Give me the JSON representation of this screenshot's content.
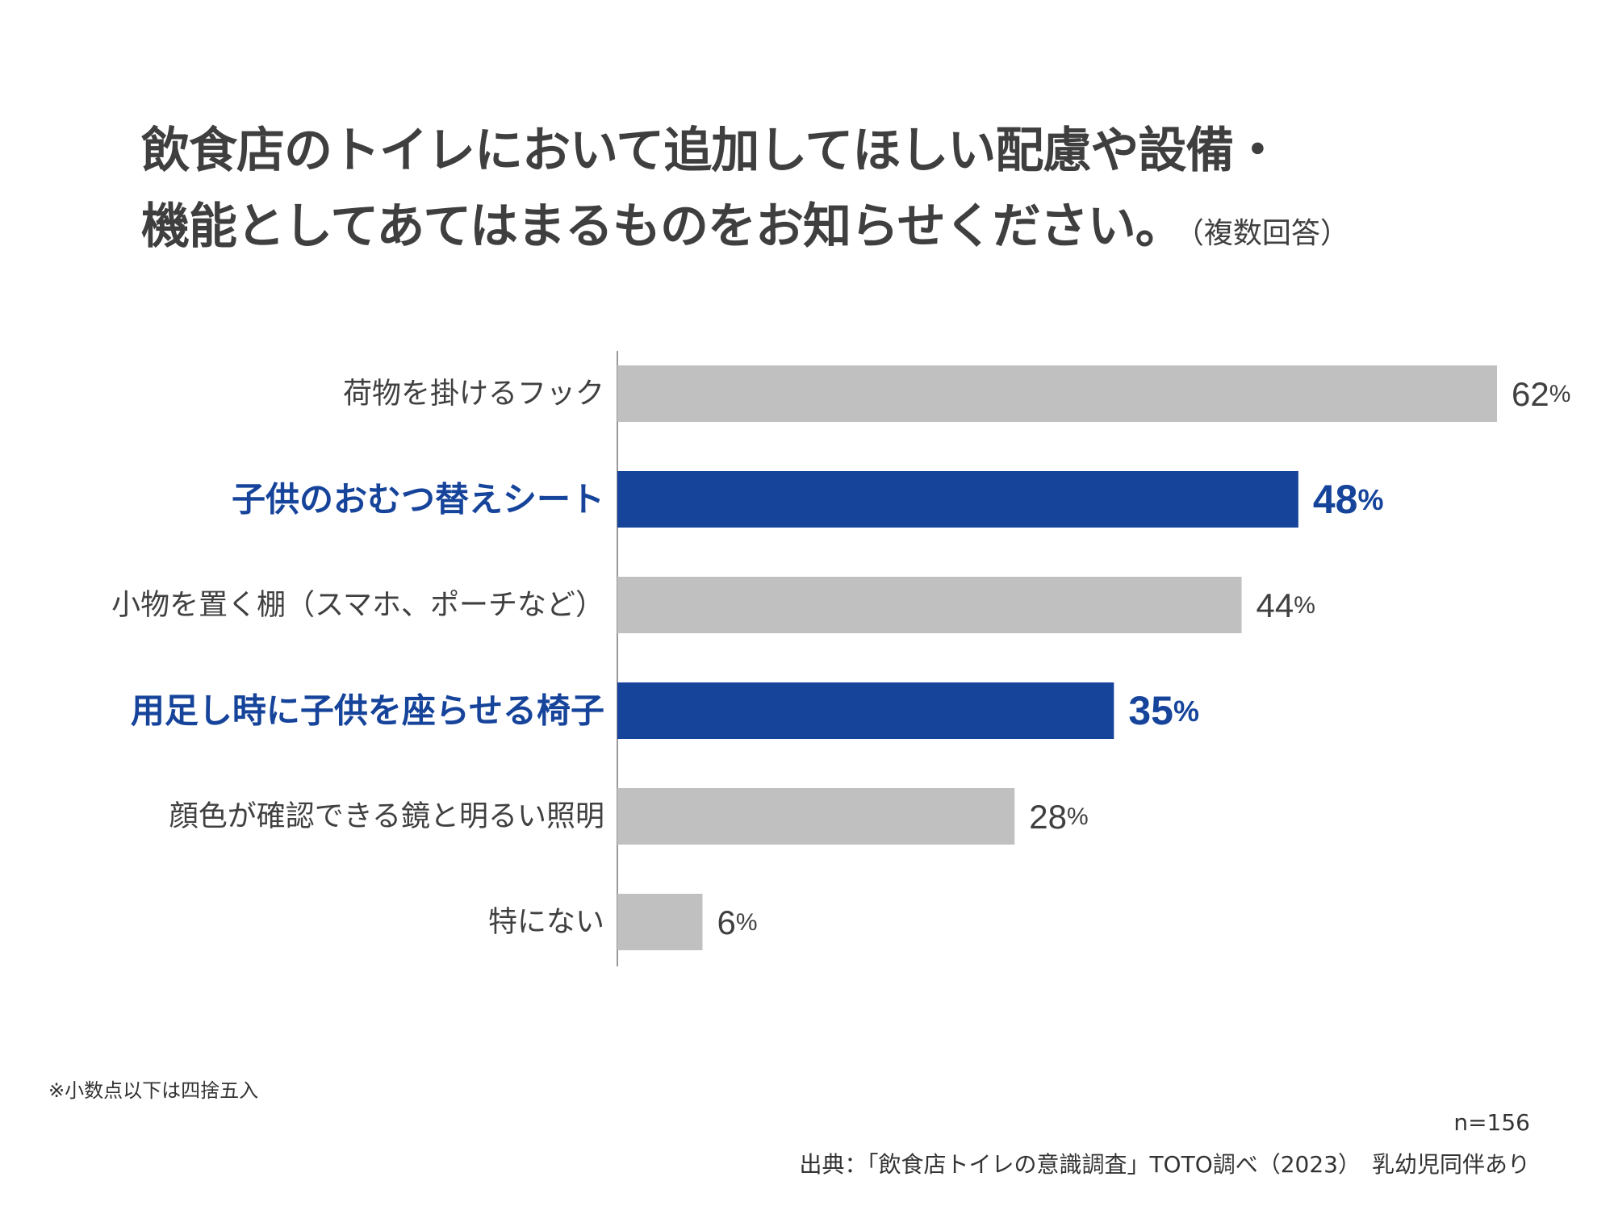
{
  "title": {
    "line1": "飲食店のトイレにおいて追加してほしい配慮や設備・",
    "line2": "機能としてあてはまるものをお知らせください。",
    "suffix": "（複数回答）"
  },
  "chart_data": {
    "type": "bar",
    "orientation": "horizontal",
    "categories": [
      "荷物を掛けるフック",
      "子供のおむつ替えシート",
      "小物を置く棚（スマホ、ポーチなど）",
      "用足し時に子供を座らせる椅子",
      "顔色が確認できる鏡と明るい照明",
      "特にない"
    ],
    "values": [
      62,
      48,
      44,
      35,
      28,
      6
    ],
    "value_labels": [
      "62",
      "48",
      "44",
      "35",
      "28",
      "6"
    ],
    "unit": "%",
    "highlighted": [
      false,
      true,
      false,
      true,
      false,
      false
    ],
    "xlim": [
      0,
      100
    ],
    "colors": {
      "default": "#c0c0c0",
      "highlight": "#16449b",
      "axis": "#999999",
      "text": "#404040"
    }
  },
  "footnote": "※小数点以下は四捨五入",
  "sample_size": "n=156",
  "source": "出典：「飲食店トイレの意識調査」TOTO調べ（2023）　乳幼児同伴あり"
}
